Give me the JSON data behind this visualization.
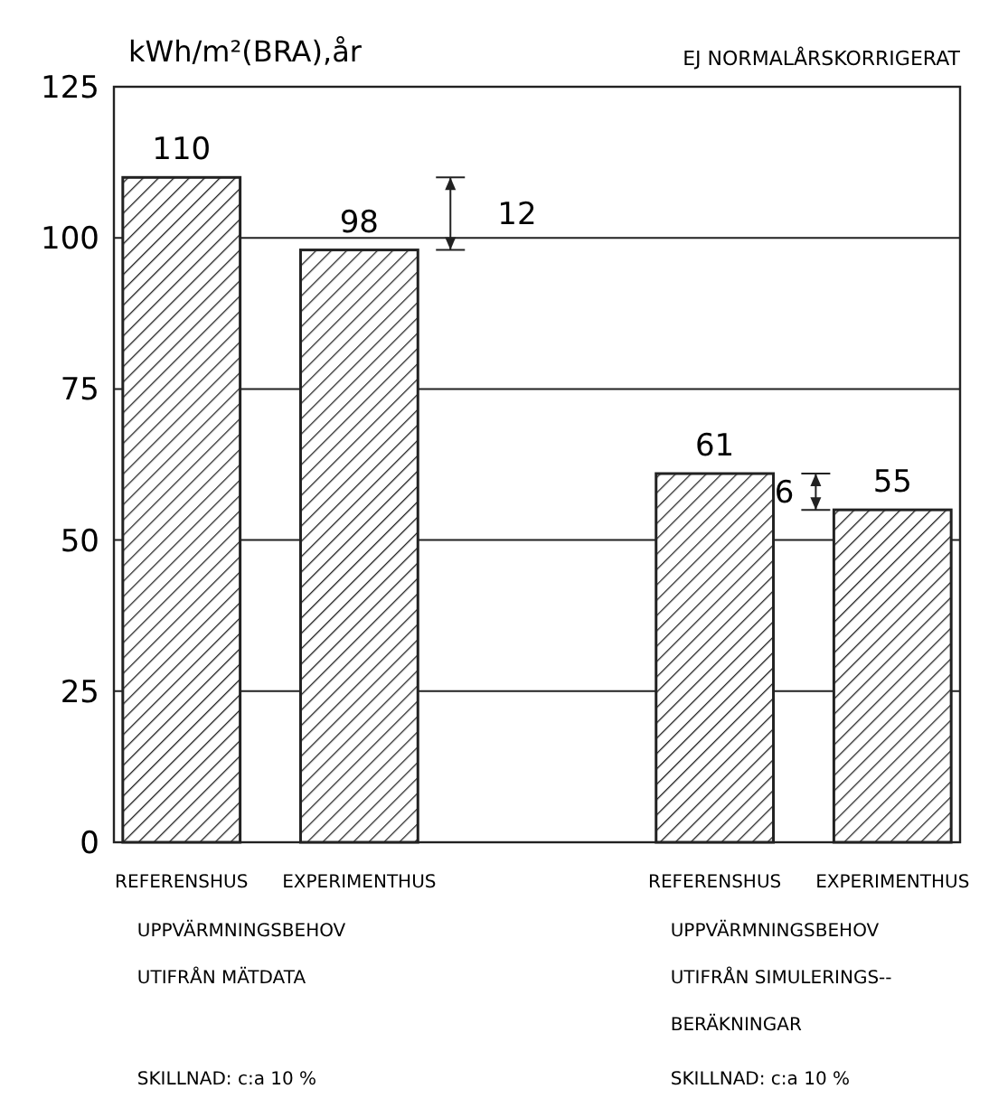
{
  "chart_data": {
    "type": "bar",
    "ylabel": "kWh/m²(BRA),år",
    "subtitle": "EJ NORMALÅRSKORRIGERAT",
    "categories": [
      "REFERENSHUS",
      "EXPERIMENTHUS",
      null,
      "REFERENSHUS",
      "EXPERIMENTHUS"
    ],
    "values": [
      110,
      98,
      null,
      61,
      55
    ],
    "color": "#222222",
    "ylim": [
      0,
      125
    ],
    "yticks": [
      0,
      25,
      50,
      75,
      100,
      125
    ],
    "grid": "y",
    "data_labels": true,
    "annotations": [
      "12",
      "6",
      "UPPVÄRMNINGSBEHOV\nUTIFRÅN MÄTDATA",
      "UPPVÄRMNINGSBEHOV\nUTIFRÅN SIMULERINGS--\nBERÄKNINGAR",
      "SKILLNAD: c:a 10 %",
      "SKILLNAD: c:a 10 %"
    ]
  }
}
